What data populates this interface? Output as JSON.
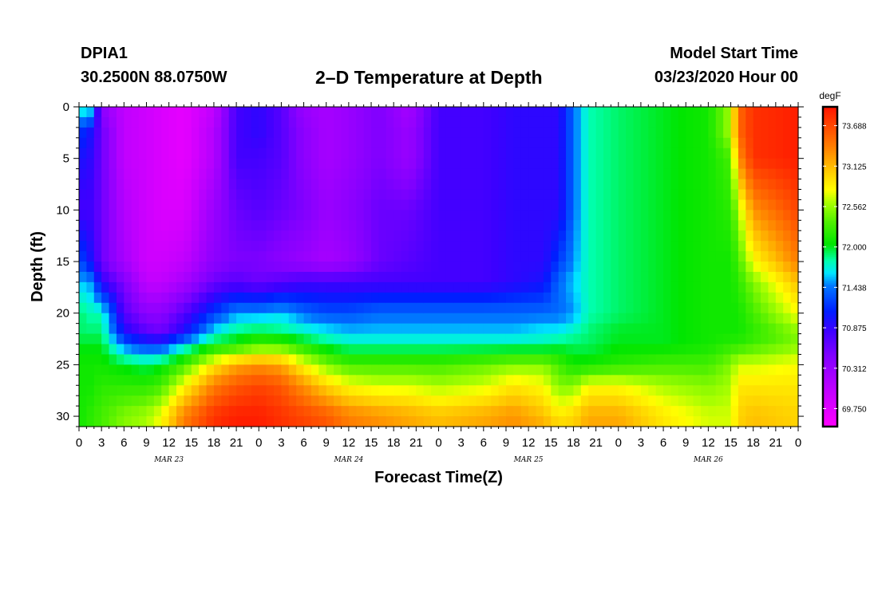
{
  "header": {
    "station": "DPIA1",
    "coords": "30.2500N 88.0750W",
    "title": "2–D Temperature at Depth",
    "model_start_label": "Model Start Time",
    "model_start_value": "03/23/2020 Hour 00"
  },
  "chart_data": {
    "type": "heatmap",
    "title": "2–D Temperature at Depth",
    "xlabel": "Forecast Time(Z)",
    "ylabel": "Depth (ft)",
    "xlim": [
      0,
      96
    ],
    "ylim": [
      0,
      31
    ],
    "y_inverted": true,
    "x_tick_labels": [
      "0",
      "3",
      "6",
      "9",
      "12",
      "15",
      "18",
      "21",
      "0",
      "3",
      "6",
      "9",
      "12",
      "15",
      "18",
      "21",
      "0",
      "3",
      "6",
      "9",
      "12",
      "15",
      "18",
      "21",
      "0",
      "3",
      "6",
      "9",
      "12",
      "15",
      "18",
      "21",
      "0"
    ],
    "y_ticks": [
      0,
      5,
      10,
      15,
      20,
      25,
      30
    ],
    "date_labels": [
      {
        "hour": 12,
        "label": "MAR 23"
      },
      {
        "hour": 36,
        "label": "MAR 24"
      },
      {
        "hour": 60,
        "label": "MAR 25"
      },
      {
        "hour": 84,
        "label": "MAR 26"
      }
    ],
    "colorbar": {
      "unit": "degF",
      "min": 69.5,
      "max": 73.95,
      "tick_labels": [
        "73.688",
        "73.125",
        "72.562",
        "72.000",
        "71.438",
        "70.875",
        "70.312",
        "69.750"
      ]
    },
    "depth_levels_ft": [
      0,
      2.5,
      5,
      10,
      15,
      17,
      20,
      22,
      23,
      25,
      27,
      30,
      31
    ],
    "grid_hours": [
      0,
      1.5,
      3,
      6,
      9,
      11,
      14,
      18,
      21,
      24,
      27,
      30,
      33,
      36,
      40,
      44,
      48,
      54,
      58,
      62,
      64,
      66,
      68,
      72,
      78,
      84,
      87,
      88,
      90,
      96
    ],
    "temperatures_degF": [
      [
        71.8,
        71.7,
        70.4,
        70.0,
        69.9,
        69.8,
        69.7,
        70.0,
        70.8,
        70.9,
        70.7,
        70.3,
        70.2,
        70.3,
        70.5,
        70.2,
        70.8,
        70.8,
        70.9,
        70.9,
        70.9,
        71.4,
        71.8,
        71.9,
        72.0,
        72.1,
        72.6,
        73.5,
        73.8,
        73.9
      ],
      [
        71.2,
        71.0,
        70.6,
        70.0,
        69.9,
        69.8,
        69.7,
        70.1,
        70.8,
        70.9,
        70.7,
        70.4,
        70.2,
        70.3,
        70.5,
        70.3,
        70.8,
        70.8,
        70.9,
        70.9,
        70.9,
        71.4,
        71.8,
        71.9,
        72.0,
        72.1,
        72.6,
        73.5,
        73.8,
        73.9
      ],
      [
        71.0,
        70.9,
        70.6,
        70.0,
        69.9,
        69.8,
        69.7,
        70.1,
        70.8,
        70.8,
        70.7,
        70.4,
        70.2,
        70.3,
        70.5,
        70.3,
        70.8,
        70.8,
        70.9,
        70.9,
        70.9,
        71.4,
        71.8,
        71.9,
        72.0,
        72.1,
        72.3,
        73.3,
        73.8,
        73.9
      ],
      [
        70.8,
        70.8,
        70.6,
        70.1,
        69.9,
        69.8,
        69.8,
        70.3,
        70.6,
        70.7,
        70.6,
        70.5,
        70.3,
        70.4,
        70.6,
        70.6,
        70.8,
        70.8,
        70.9,
        70.9,
        70.9,
        71.4,
        71.8,
        71.9,
        72.0,
        72.1,
        72.2,
        72.6,
        73.3,
        73.7
      ],
      [
        71.3,
        71.0,
        70.6,
        70.2,
        69.9,
        69.9,
        70.0,
        70.4,
        70.5,
        70.5,
        70.4,
        70.3,
        70.2,
        70.3,
        70.6,
        70.7,
        70.8,
        70.8,
        70.9,
        70.9,
        71.2,
        71.5,
        71.8,
        71.9,
        72.0,
        72.1,
        72.1,
        72.3,
        72.8,
        73.4
      ],
      [
        71.6,
        71.5,
        70.9,
        70.5,
        70.0,
        70.0,
        70.2,
        70.6,
        70.7,
        70.6,
        70.7,
        70.8,
        70.8,
        70.8,
        70.8,
        70.8,
        70.8,
        70.8,
        70.9,
        71.0,
        71.4,
        71.6,
        71.8,
        71.9,
        72.0,
        72.1,
        72.1,
        72.2,
        72.5,
        73.1
      ],
      [
        71.9,
        71.8,
        71.8,
        70.7,
        70.4,
        70.4,
        70.7,
        71.2,
        71.5,
        71.5,
        71.6,
        71.4,
        71.3,
        71.3,
        71.4,
        71.4,
        71.4,
        71.4,
        71.4,
        71.4,
        71.4,
        71.5,
        71.8,
        71.9,
        72.0,
        72.1,
        72.1,
        72.1,
        72.3,
        72.8
      ],
      [
        71.9,
        71.9,
        71.9,
        71.0,
        70.7,
        70.6,
        71.0,
        71.7,
        71.9,
        72.0,
        71.9,
        71.8,
        71.7,
        71.6,
        71.6,
        71.6,
        71.6,
        71.6,
        71.6,
        71.7,
        71.7,
        71.8,
        71.9,
        72.0,
        72.0,
        72.1,
        72.1,
        72.1,
        72.2,
        72.5
      ],
      [
        72.0,
        72.0,
        72.0,
        71.4,
        71.2,
        71.2,
        71.6,
        72.0,
        72.1,
        72.3,
        72.3,
        72.1,
        71.9,
        71.8,
        71.8,
        71.8,
        71.8,
        71.8,
        71.8,
        71.8,
        71.9,
        71.9,
        71.9,
        72.0,
        72.0,
        72.1,
        72.2,
        72.2,
        72.3,
        72.5
      ],
      [
        72.1,
        72.1,
        72.1,
        72.0,
        71.9,
        72.0,
        72.3,
        72.9,
        73.2,
        73.3,
        73.2,
        72.8,
        72.5,
        72.3,
        72.3,
        72.3,
        72.3,
        72.4,
        72.5,
        72.5,
        72.3,
        72.1,
        72.1,
        72.2,
        72.3,
        72.3,
        72.5,
        72.7,
        72.7,
        72.8
      ],
      [
        72.1,
        72.1,
        72.2,
        72.2,
        72.2,
        72.3,
        72.8,
        73.4,
        73.6,
        73.7,
        73.6,
        73.3,
        73.0,
        72.8,
        72.7,
        72.7,
        72.6,
        72.7,
        72.9,
        72.8,
        72.5,
        72.5,
        72.8,
        72.8,
        72.6,
        72.5,
        72.6,
        72.9,
        72.9,
        72.9
      ],
      [
        72.1,
        72.2,
        72.3,
        72.5,
        72.6,
        72.8,
        73.4,
        73.8,
        73.9,
        73.9,
        73.8,
        73.7,
        73.6,
        73.4,
        73.3,
        73.2,
        73.1,
        73.2,
        73.3,
        73.1,
        72.9,
        73.0,
        73.2,
        73.2,
        72.9,
        72.7,
        72.7,
        73.0,
        73.1,
        73.0
      ],
      [
        72.1,
        72.2,
        72.3,
        72.5,
        72.6,
        72.8,
        73.4,
        73.8,
        73.9,
        73.9,
        73.8,
        73.7,
        73.6,
        73.4,
        73.3,
        73.2,
        73.1,
        73.2,
        73.3,
        73.2,
        73.0,
        73.0,
        73.2,
        73.2,
        72.9,
        72.7,
        72.7,
        73.0,
        73.1,
        73.0
      ]
    ]
  }
}
